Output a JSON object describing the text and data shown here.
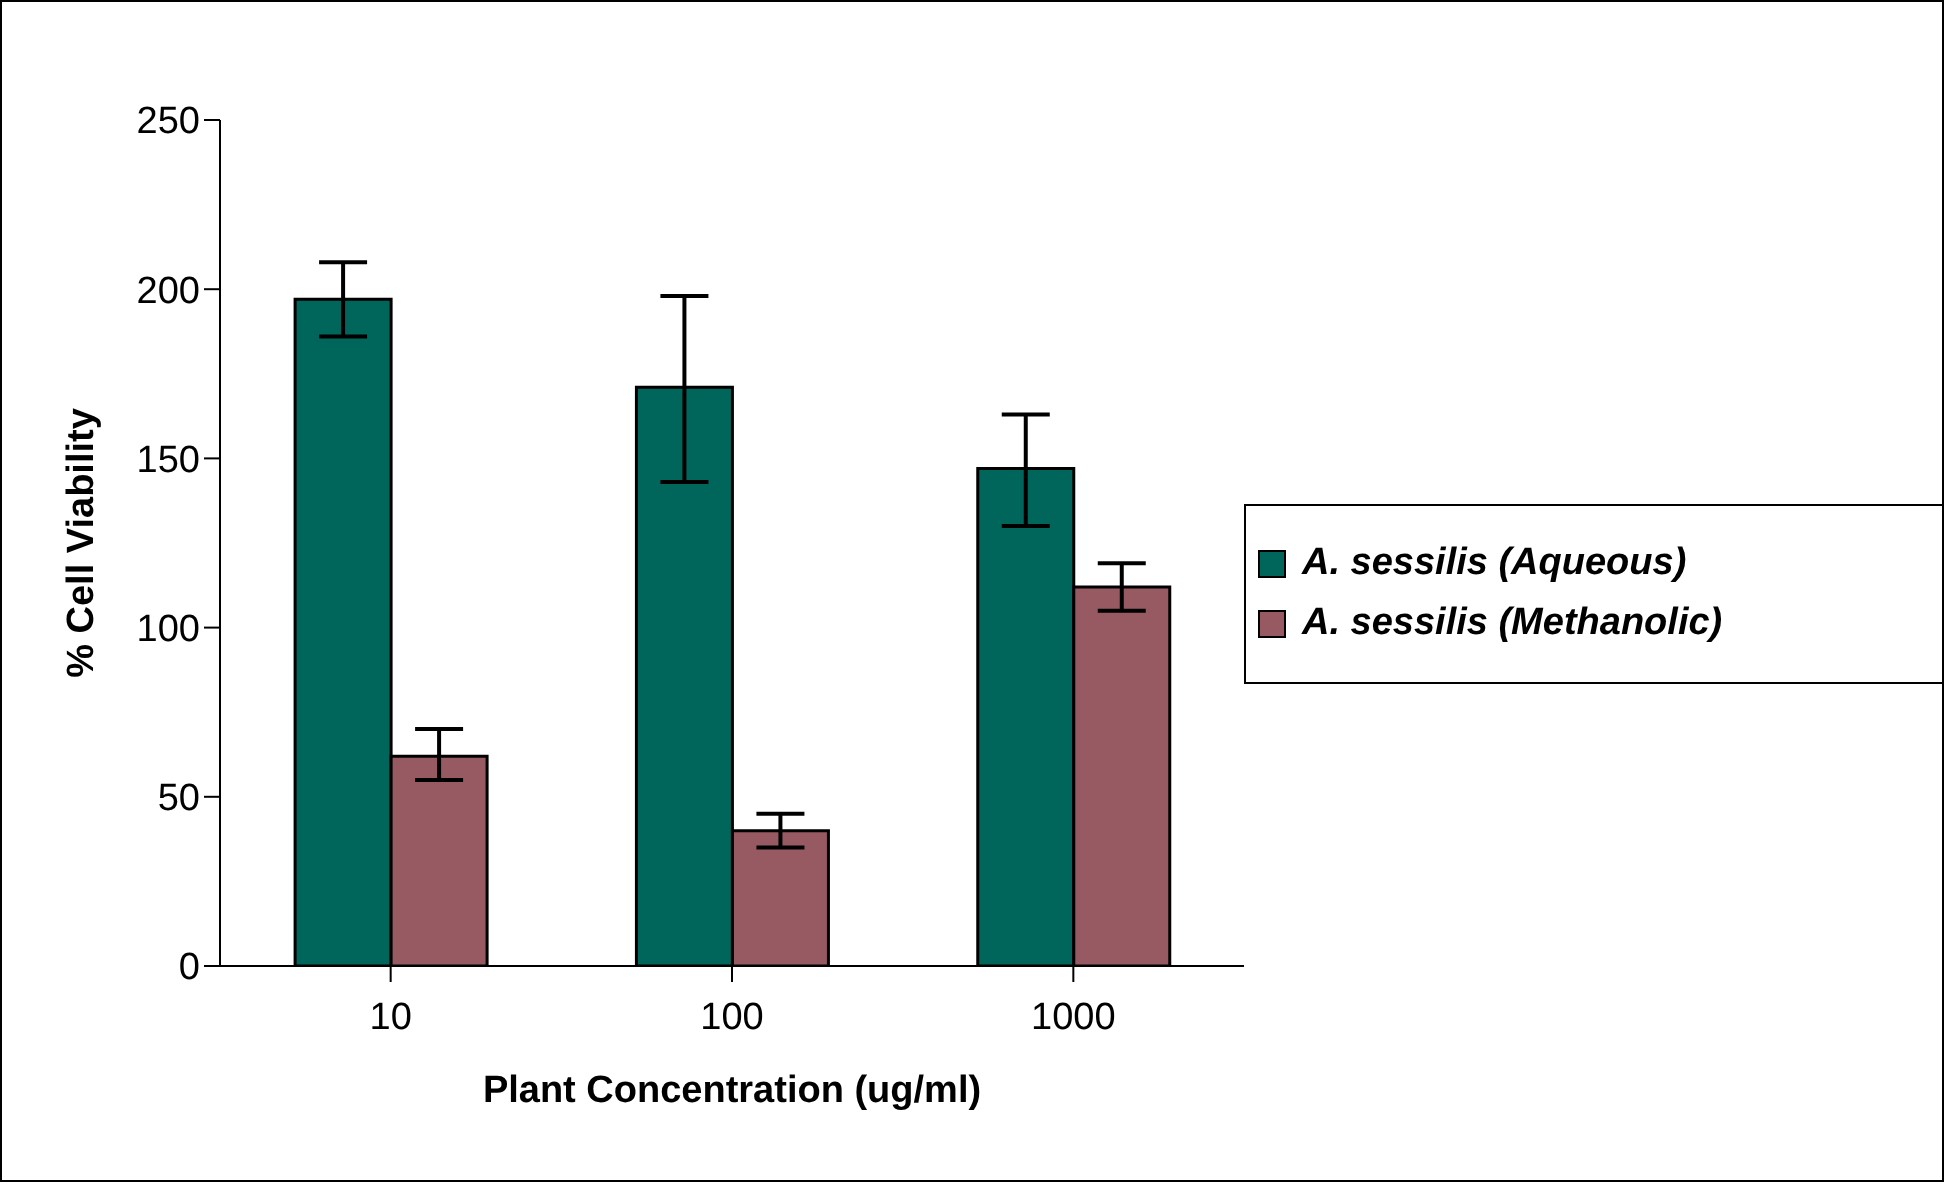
{
  "chart_data": {
    "type": "bar",
    "xlabel": "Plant Concentration (ug/ml)",
    "ylabel": "% Cell Viability",
    "categories": [
      "10",
      "100",
      "1000"
    ],
    "series": [
      {
        "name": "A. sessilis (Aqueous)",
        "color": "#00665c",
        "values": [
          197,
          171,
          147
        ],
        "errors": [
          [
            186,
            208
          ],
          [
            143,
            198
          ],
          [
            130,
            163
          ]
        ]
      },
      {
        "name": "A. sessilis (Methanolic)",
        "color": "#985a62",
        "values": [
          62,
          40,
          112
        ],
        "errors": [
          [
            55,
            70
          ],
          [
            35,
            45
          ],
          [
            105,
            119
          ]
        ]
      }
    ],
    "ylim": [
      0,
      250
    ],
    "yticks": [
      0,
      50,
      100,
      150,
      200,
      250
    ],
    "grid": false,
    "legend": "right"
  }
}
